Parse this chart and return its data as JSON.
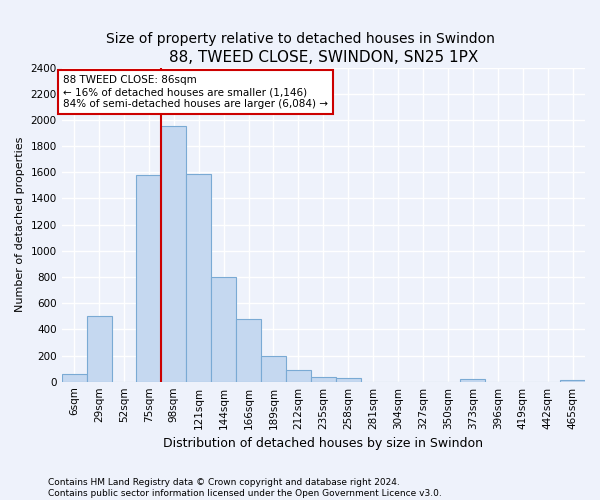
{
  "title": "88, TWEED CLOSE, SWINDON, SN25 1PX",
  "subtitle": "Size of property relative to detached houses in Swindon",
  "xlabel": "Distribution of detached houses by size in Swindon",
  "ylabel": "Number of detached properties",
  "categories": [
    "6sqm",
    "29sqm",
    "52sqm",
    "75sqm",
    "98sqm",
    "121sqm",
    "144sqm",
    "166sqm",
    "189sqm",
    "212sqm",
    "235sqm",
    "258sqm",
    "281sqm",
    "304sqm",
    "327sqm",
    "350sqm",
    "373sqm",
    "396sqm",
    "419sqm",
    "442sqm",
    "465sqm"
  ],
  "values": [
    55,
    500,
    0,
    1580,
    1950,
    1590,
    800,
    480,
    195,
    90,
    35,
    28,
    0,
    0,
    0,
    0,
    20,
    0,
    0,
    0,
    15
  ],
  "bar_color": "#c5d8f0",
  "bar_edge_color": "#7aaad4",
  "red_line_bin_index": 4,
  "annotation_box_color": "#cc0000",
  "annotation_title": "88 TWEED CLOSE: 86sqm",
  "annotation_line1": "← 16% of detached houses are smaller (1,146)",
  "annotation_line2": "84% of semi-detached houses are larger (6,084) →",
  "ylim": [
    0,
    2400
  ],
  "yticks": [
    0,
    200,
    400,
    600,
    800,
    1000,
    1200,
    1400,
    1600,
    1800,
    2000,
    2200,
    2400
  ],
  "footer_line1": "Contains HM Land Registry data © Crown copyright and database right 2024.",
  "footer_line2": "Contains public sector information licensed under the Open Government Licence v3.0.",
  "background_color": "#eef2fb",
  "grid_color": "#ffffff",
  "title_fontsize": 11,
  "subtitle_fontsize": 10,
  "ylabel_fontsize": 8,
  "xlabel_fontsize": 9,
  "tick_fontsize": 7.5,
  "footer_fontsize": 6.5
}
